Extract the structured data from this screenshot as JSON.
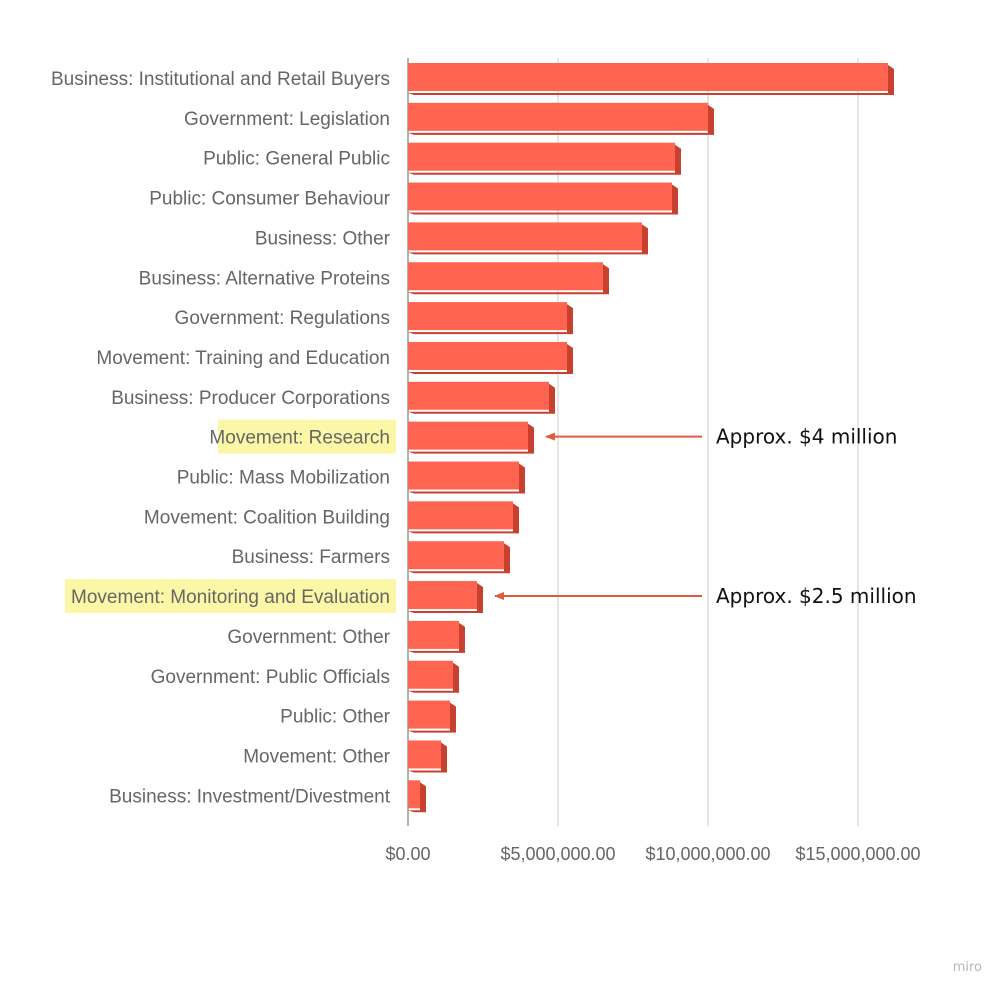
{
  "chart_data": {
    "type": "bar",
    "orientation": "horizontal",
    "categories": [
      "Business: Institutional and Retail Buyers",
      "Government: Legislation",
      "Public: General Public",
      "Public: Consumer Behaviour",
      "Business: Other",
      "Business: Alternative Proteins",
      "Government: Regulations",
      "Movement: Training and Education",
      "Business: Producer Corporations",
      "Movement: Research",
      "Public: Mass Mobilization",
      "Movement: Coalition Building",
      "Business: Farmers",
      "Movement: Monitoring and Evaluation",
      "Government: Other",
      "Government: Public Officials",
      "Public: Other",
      "Movement: Other",
      "Business: Investment/Divestment"
    ],
    "values": [
      16000000,
      10000000,
      8900000,
      8800000,
      7800000,
      6500000,
      5300000,
      5300000,
      4700000,
      4000000,
      3700000,
      3500000,
      3200000,
      2300000,
      1700000,
      1500000,
      1400000,
      1100000,
      400000
    ],
    "xlim": [
      0,
      17000000
    ],
    "x_ticks": [
      0,
      5000000,
      10000000,
      15000000
    ],
    "x_tick_labels": [
      "$0.00",
      "$5,000,000.00",
      "$10,000,000.00",
      "$15,000,000.00"
    ],
    "grid": true,
    "highlighted_categories": [
      "Movement: Research",
      "Movement: Monitoring and Evaluation"
    ],
    "annotations": [
      {
        "category": "Movement: Research",
        "text": "Approx. $4 million"
      },
      {
        "category": "Movement: Monitoring and Evaluation",
        "text": "Approx. $2.5 million"
      }
    ],
    "colors": {
      "bar": "#ff6450",
      "bar_shadow": "#c8412e",
      "highlight": "#fbf7a6",
      "arrow": "#e05a3e",
      "grid": "#cccccc"
    }
  },
  "watermark": "miro"
}
